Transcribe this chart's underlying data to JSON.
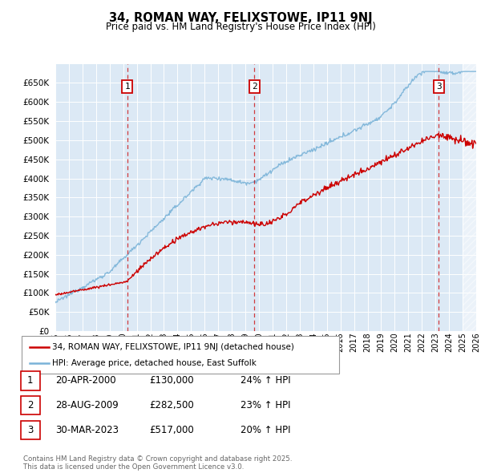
{
  "title": "34, ROMAN WAY, FELIXSTOWE, IP11 9NJ",
  "subtitle": "Price paid vs. HM Land Registry's House Price Index (HPI)",
  "ylim": [
    0,
    700000
  ],
  "yticks": [
    0,
    50000,
    100000,
    150000,
    200000,
    250000,
    300000,
    350000,
    400000,
    450000,
    500000,
    550000,
    600000,
    650000
  ],
  "background_color": "#dce9f5",
  "grid_color": "#ffffff",
  "hpi_color": "#7ab3d8",
  "price_color": "#cc0000",
  "transactions": [
    {
      "date_num": 2000.3,
      "price": 130000,
      "label": "1"
    },
    {
      "date_num": 2009.65,
      "price": 282500,
      "label": "2"
    },
    {
      "date_num": 2023.24,
      "price": 517000,
      "label": "3"
    }
  ],
  "legend_property_label": "34, ROMAN WAY, FELIXSTOWE, IP11 9NJ (detached house)",
  "legend_hpi_label": "HPI: Average price, detached house, East Suffolk",
  "table_rows": [
    {
      "num": "1",
      "date": "20-APR-2000",
      "price": "£130,000",
      "hpi": "24% ↑ HPI"
    },
    {
      "num": "2",
      "date": "28-AUG-2009",
      "price": "£282,500",
      "hpi": "23% ↑ HPI"
    },
    {
      "num": "3",
      "date": "30-MAR-2023",
      "price": "£517,000",
      "hpi": "20% ↑ HPI"
    }
  ],
  "footer": "Contains HM Land Registry data © Crown copyright and database right 2025.\nThis data is licensed under the Open Government Licence v3.0.",
  "xstart": 1995,
  "xend": 2026
}
